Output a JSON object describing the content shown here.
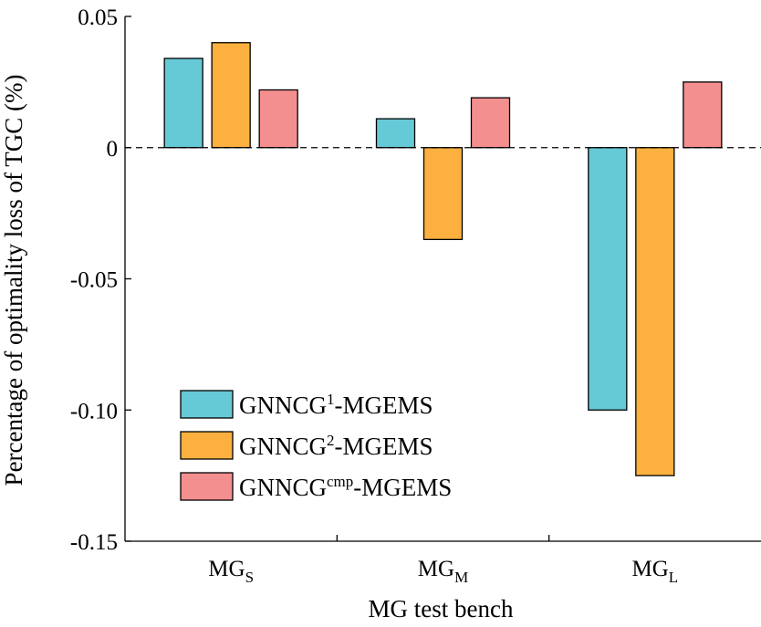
{
  "chart_data": {
    "type": "bar",
    "categories": [
      {
        "base": "MG",
        "sub": "S"
      },
      {
        "base": "MG",
        "sub": "M"
      },
      {
        "base": "MG",
        "sub": "L"
      }
    ],
    "series": [
      {
        "name": {
          "base": "GNNCG",
          "sup": "1",
          "suffix": "-MGEMS"
        },
        "color": "#66c9d6",
        "values": [
          0.034,
          0.011,
          -0.1
        ]
      },
      {
        "name": {
          "base": "GNNCG",
          "sup": "2",
          "suffix": "-MGEMS"
        },
        "color": "#fbb040",
        "values": [
          0.04,
          -0.035,
          -0.125
        ]
      },
      {
        "name": {
          "base": "GNNCG",
          "sup": "cmp",
          "suffix": "-MGEMS"
        },
        "color": "#f48f8f",
        "values": [
          0.022,
          0.019,
          0.025
        ]
      }
    ],
    "ylabel": "Percentage of optimality loss of  TGC (%)",
    "xlabel": "MG test bench",
    "ylim": [
      -0.15,
      0.05
    ],
    "yticks": [
      {
        "value": 0.05,
        "label": "0.05"
      },
      {
        "value": 0,
        "label": "0"
      },
      {
        "value": -0.05,
        "label": "-0.05"
      },
      {
        "value": -0.1,
        "label": "-0.10"
      },
      {
        "value": -0.15,
        "label": "-0.15"
      }
    ],
    "zero_line": "dashed",
    "grid": false,
    "legend_position": "bottom-left"
  }
}
